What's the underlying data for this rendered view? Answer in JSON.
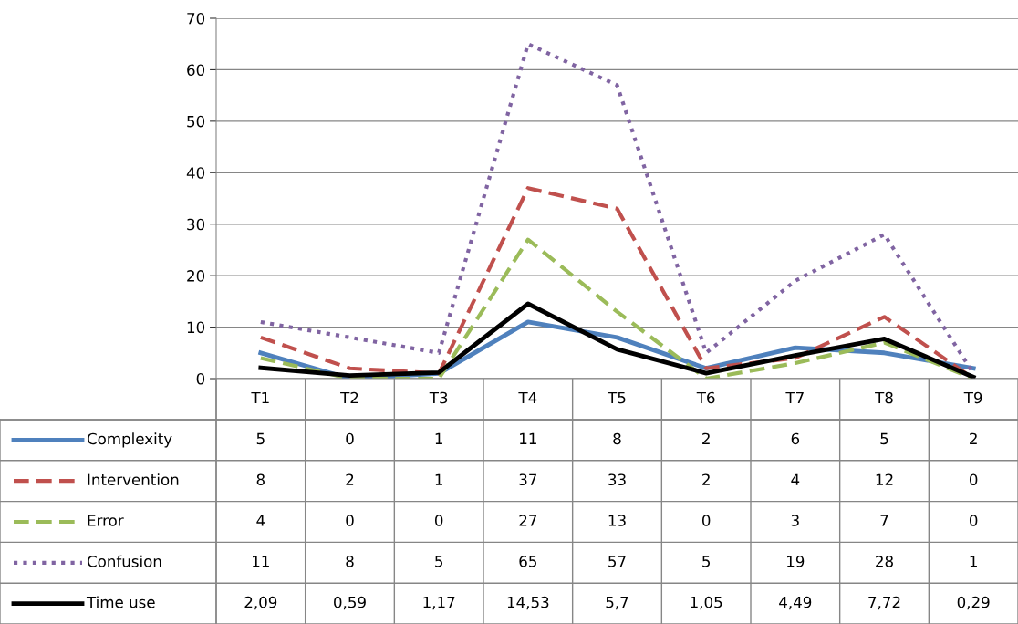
{
  "chart_data": {
    "type": "line",
    "categories": [
      "T1",
      "T2",
      "T3",
      "T4",
      "T5",
      "T6",
      "T7",
      "T8",
      "T9"
    ],
    "ylim": [
      0,
      70
    ],
    "yticks": [
      0,
      10,
      20,
      30,
      40,
      50,
      60,
      70
    ],
    "grid": "y",
    "legend": "bottom",
    "marker": "none",
    "series": [
      {
        "name": "Complexity",
        "color": "#4f81bd",
        "line_style": "solid",
        "values": [
          5,
          0,
          1,
          11,
          8,
          2,
          6,
          5,
          2
        ],
        "value_labels": [
          "5",
          "0",
          "1",
          "11",
          "8",
          "2",
          "6",
          "5",
          "2"
        ]
      },
      {
        "name": "Intervention",
        "color": "#c0504d",
        "line_style": "dashed",
        "values": [
          8,
          2,
          1,
          37,
          33,
          2,
          4,
          12,
          0
        ],
        "value_labels": [
          "8",
          "2",
          "1",
          "37",
          "33",
          "2",
          "4",
          "12",
          "0"
        ]
      },
      {
        "name": "Error",
        "color": "#9bbb59",
        "line_style": "dashed",
        "values": [
          4,
          0,
          0,
          27,
          13,
          0,
          3,
          7,
          0
        ],
        "value_labels": [
          "4",
          "0",
          "0",
          "27",
          "13",
          "0",
          "3",
          "7",
          "0"
        ]
      },
      {
        "name": "Confusion",
        "color": "#8064a2",
        "line_style": "dotted",
        "values": [
          11,
          8,
          5,
          65,
          57,
          5,
          19,
          28,
          1
        ],
        "value_labels": [
          "11",
          "8",
          "5",
          "65",
          "57",
          "5",
          "19",
          "28",
          "1"
        ]
      },
      {
        "name": "Time use",
        "color": "#000000",
        "line_style": "solid",
        "values": [
          2.09,
          0.59,
          1.17,
          14.53,
          5.7,
          1.05,
          4.49,
          7.72,
          0.29
        ],
        "value_labels": [
          "2,09",
          "0,59",
          "1,17",
          "14,53",
          "5,7",
          "1,05",
          "4,49",
          "7,72",
          "0,29"
        ]
      }
    ]
  }
}
